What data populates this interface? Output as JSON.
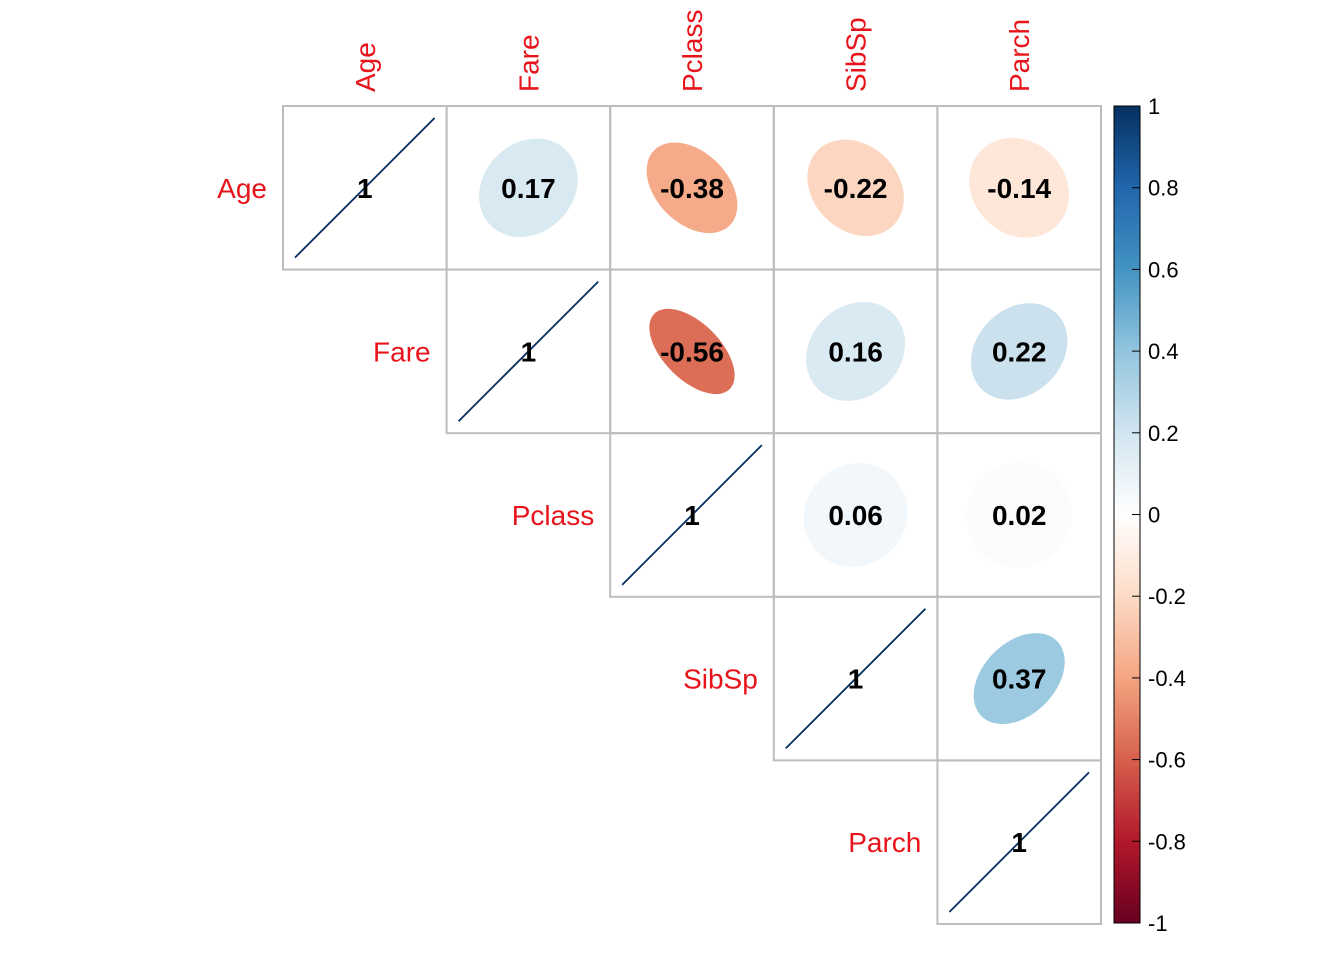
{
  "chart_data": {
    "type": "heatmap",
    "method": "ellipse",
    "layout": "upper",
    "variables": [
      "Age",
      "Fare",
      "Pclass",
      "SibSp",
      "Parch"
    ],
    "matrix": [
      [
        1,
        0.17,
        -0.38,
        -0.22,
        -0.14
      ],
      [
        0.17,
        1,
        -0.56,
        0.16,
        0.22
      ],
      [
        -0.38,
        -0.56,
        1,
        0.06,
        0.02
      ],
      [
        -0.22,
        0.16,
        0.06,
        1,
        0.37
      ],
      [
        -0.14,
        0.22,
        0.02,
        0.37,
        1
      ]
    ],
    "value_labels": [
      [
        "1",
        "0.17",
        "-0.38",
        "-0.22",
        "-0.14"
      ],
      [
        "",
        "1",
        "-0.56",
        "0.16",
        "0.22"
      ],
      [
        "",
        "",
        "1",
        "0.06",
        "0.02"
      ],
      [
        "",
        "",
        "",
        "1",
        "0.37"
      ],
      [
        "",
        "",
        "",
        "",
        "1"
      ]
    ],
    "color_scale": {
      "range": [
        -1,
        1
      ],
      "ticks": [
        "-1",
        "-0.8",
        "-0.6",
        "-0.4",
        "-0.2",
        "0",
        "0.2",
        "0.4",
        "0.6",
        "0.8",
        "1"
      ],
      "stops": [
        {
          "value": -1.0,
          "color": "#67001F"
        },
        {
          "value": -0.8,
          "color": "#B2182B"
        },
        {
          "value": -0.6,
          "color": "#D6604D"
        },
        {
          "value": -0.4,
          "color": "#F4A582"
        },
        {
          "value": -0.2,
          "color": "#FDDBC7"
        },
        {
          "value": 0.0,
          "color": "#FFFFFF"
        },
        {
          "value": 0.2,
          "color": "#D1E5F0"
        },
        {
          "value": 0.4,
          "color": "#92C5DE"
        },
        {
          "value": 0.6,
          "color": "#4393C3"
        },
        {
          "value": 0.8,
          "color": "#2166AC"
        },
        {
          "value": 1.0,
          "color": "#053061"
        }
      ]
    },
    "label_color": "#E8141B",
    "grid_color": "#BDBDBD"
  }
}
